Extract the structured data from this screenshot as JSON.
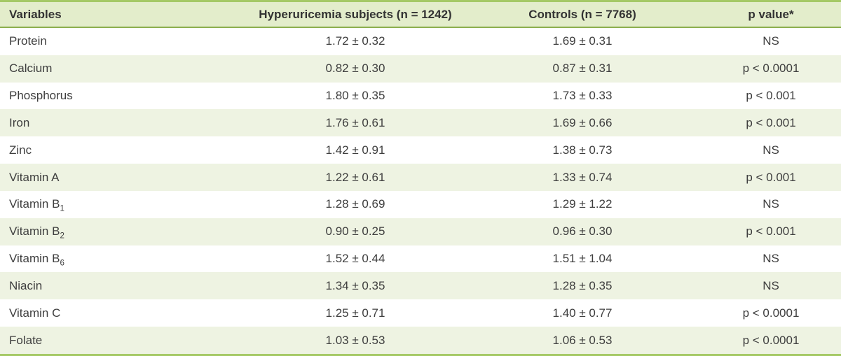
{
  "table": {
    "columns": [
      {
        "label": "Variables"
      },
      {
        "label": "Hyperuricemia subjects (n = 1242)"
      },
      {
        "label": "Controls (n = 7768)"
      },
      {
        "label": "p value*"
      }
    ],
    "rows": [
      {
        "variable": "Protein",
        "variable_sub": "",
        "hyperuricemia": "1.72 ± 0.32",
        "controls": "1.69 ± 0.31",
        "p_value": "NS"
      },
      {
        "variable": "Calcium",
        "variable_sub": "",
        "hyperuricemia": "0.82 ± 0.30",
        "controls": "0.87 ± 0.31",
        "p_value": "p < 0.0001"
      },
      {
        "variable": "Phosphorus",
        "variable_sub": "",
        "hyperuricemia": "1.80 ± 0.35",
        "controls": "1.73 ± 0.33",
        "p_value": "p < 0.001"
      },
      {
        "variable": "Iron",
        "variable_sub": "",
        "hyperuricemia": "1.76 ± 0.61",
        "controls": "1.69 ± 0.66",
        "p_value": "p < 0.001"
      },
      {
        "variable": "Zinc",
        "variable_sub": "",
        "hyperuricemia": "1.42 ± 0.91",
        "controls": "1.38 ± 0.73",
        "p_value": "NS"
      },
      {
        "variable": "Vitamin A",
        "variable_sub": "",
        "hyperuricemia": "1.22 ± 0.61",
        "controls": "1.33 ± 0.74",
        "p_value": "p < 0.001"
      },
      {
        "variable": "Vitamin B",
        "variable_sub": "1",
        "hyperuricemia": "1.28 ± 0.69",
        "controls": "1.29 ± 1.22",
        "p_value": "NS"
      },
      {
        "variable": "Vitamin B",
        "variable_sub": "2",
        "hyperuricemia": "0.90 ± 0.25",
        "controls": "0.96 ± 0.30",
        "p_value": "p < 0.001"
      },
      {
        "variable": "Vitamin B",
        "variable_sub": "6",
        "hyperuricemia": "1.52 ± 0.44",
        "controls": "1.51 ± 1.04",
        "p_value": "NS"
      },
      {
        "variable": "Niacin",
        "variable_sub": "",
        "hyperuricemia": "1.34 ± 0.35",
        "controls": "1.28 ± 0.35",
        "p_value": "NS"
      },
      {
        "variable": "Vitamin C",
        "variable_sub": "",
        "hyperuricemia": "1.25 ± 0.71",
        "controls": "1.40 ± 0.77",
        "p_value": "p < 0.0001"
      },
      {
        "variable": "Folate",
        "variable_sub": "",
        "hyperuricemia": "1.03 ± 0.53",
        "controls": "1.06 ± 0.53",
        "p_value": "p < 0.0001"
      }
    ]
  },
  "colors": {
    "outer_border_green": "#a5c966",
    "header_background": "#e3edcb",
    "header_rule_green": "#8caf4e",
    "alternate_row_background": "#eef3e2",
    "text": "#3e3e3e"
  }
}
